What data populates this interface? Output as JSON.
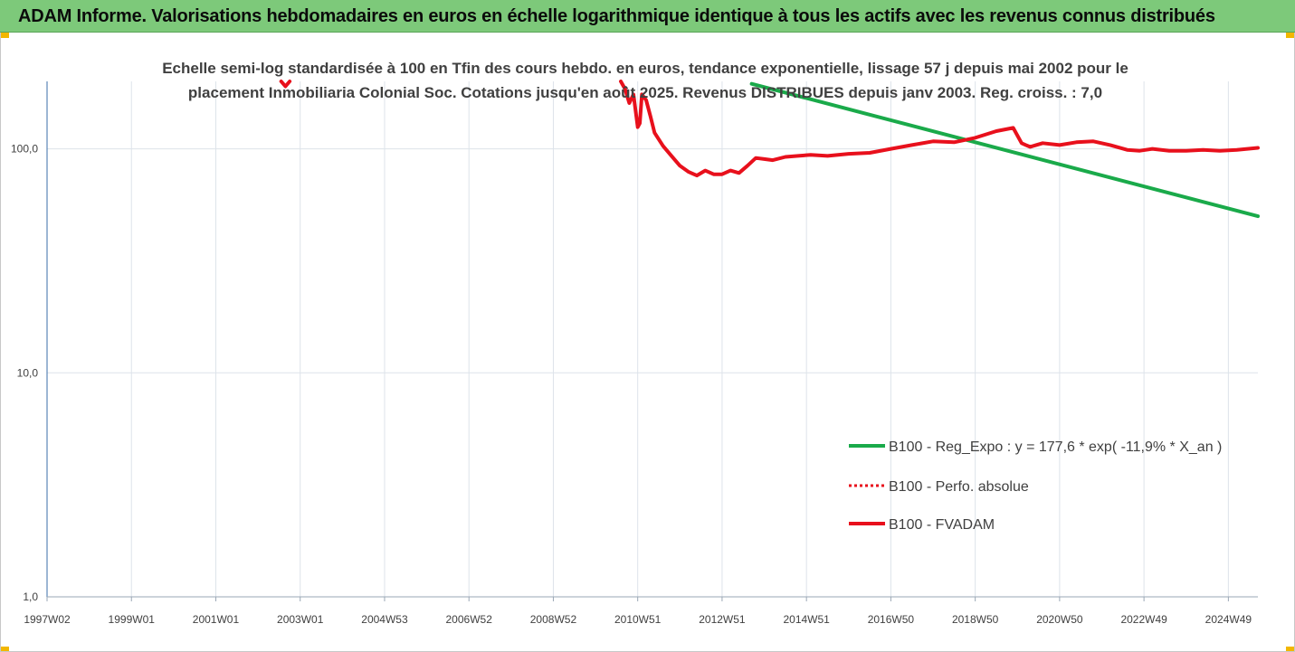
{
  "header": {
    "title": "ADAM Informe. Valorisations hebdomadaires en euros en échelle logarithmique identique à tous les actifs avec les revenus connus distribués"
  },
  "colors": {
    "banner": "#7dc97a",
    "trend": "#1aaa4a",
    "fvadam": "#e8101c",
    "perfo": "#e8101c",
    "grid": "#dde3ea"
  },
  "chart_data": {
    "type": "line",
    "title": "",
    "subtitle_lines": [
      "Echelle semi-log standardisée à 100 en Tfin des cours hebdo. en euros, tendance exponentielle, lissage 57 j depuis mai 2002 pour le",
      "placement Inmobiliaria Colonial Soc. Cotations jusqu'en août 2025. Revenus DISTRIBUES depuis janv 2003. Reg. croiss. : 7,0"
    ],
    "y_scale": "log",
    "ylim": [
      1,
      200
    ],
    "y_ticks": [
      {
        "value": 1,
        "label": "1,0"
      },
      {
        "value": 10,
        "label": "10,0"
      },
      {
        "value": 100,
        "label": "100,0"
      }
    ],
    "xlim": [
      1997.0,
      2025.7
    ],
    "x_ticks": [
      {
        "value": 1997.0,
        "label": "1997W02"
      },
      {
        "value": 1999.0,
        "label": "1999W01"
      },
      {
        "value": 2001.0,
        "label": "2001W01"
      },
      {
        "value": 2003.0,
        "label": "2003W01"
      },
      {
        "value": 2005.0,
        "label": "2004W53"
      },
      {
        "value": 2007.0,
        "label": "2006W52"
      },
      {
        "value": 2009.0,
        "label": "2008W52"
      },
      {
        "value": 2011.0,
        "label": "2010W51"
      },
      {
        "value": 2013.0,
        "label": "2012W51"
      },
      {
        "value": 2015.0,
        "label": "2014W51"
      },
      {
        "value": 2017.0,
        "label": "2016W50"
      },
      {
        "value": 2019.0,
        "label": "2018W50"
      },
      {
        "value": 2021.0,
        "label": "2020W50"
      },
      {
        "value": 2023.0,
        "label": "2022W49"
      },
      {
        "value": 2025.0,
        "label": "2024W49"
      }
    ],
    "legend_position": "bottom-right",
    "series": [
      {
        "name": "B100 - Reg_Expo : y = 177,6 * exp( -11,9% *  X_an )",
        "style": "solid-thick",
        "color": "#1aaa4a",
        "x": [
          2013.7,
          2025.7
        ],
        "y": [
          195,
          50
        ]
      },
      {
        "name": "B100 - Perfo. absolue",
        "style": "dotted",
        "color": "#e8101c",
        "x": [
          2002.55,
          2002.65,
          2002.75
        ],
        "y": [
          200,
          190,
          200
        ]
      },
      {
        "name": "B100 - FVADAM",
        "style": "solid-thick",
        "color": "#e8101c",
        "x": [
          2010.6,
          2010.7,
          2010.8,
          2010.9,
          2011.0,
          2011.05,
          2011.1,
          2011.2,
          2011.3,
          2011.4,
          2011.6,
          2011.8,
          2012.0,
          2012.2,
          2012.4,
          2012.6,
          2012.8,
          2013.0,
          2013.2,
          2013.4,
          2013.6,
          2013.8,
          2014.0,
          2014.2,
          2014.5,
          2014.8,
          2015.1,
          2015.5,
          2016.0,
          2016.5,
          2017.0,
          2017.5,
          2018.0,
          2018.5,
          2019.0,
          2019.5,
          2019.9,
          2020.1,
          2020.2,
          2020.3,
          2020.6,
          2021.0,
          2021.4,
          2021.8,
          2022.2,
          2022.6,
          2022.9,
          2023.2,
          2023.6,
          2024.0,
          2024.4,
          2024.8,
          2025.2,
          2025.7
        ],
        "y": [
          200,
          185,
          160,
          175,
          125,
          130,
          175,
          165,
          140,
          118,
          103,
          93,
          84,
          79,
          76,
          80,
          77,
          77,
          80,
          78,
          84,
          91,
          90,
          89,
          92,
          93,
          94,
          93,
          95,
          96,
          100,
          104,
          108,
          107,
          112,
          120,
          124,
          106,
          104,
          102,
          106,
          104,
          107,
          108,
          104,
          99,
          98,
          100,
          98,
          98,
          99,
          98,
          99,
          101
        ]
      }
    ]
  }
}
